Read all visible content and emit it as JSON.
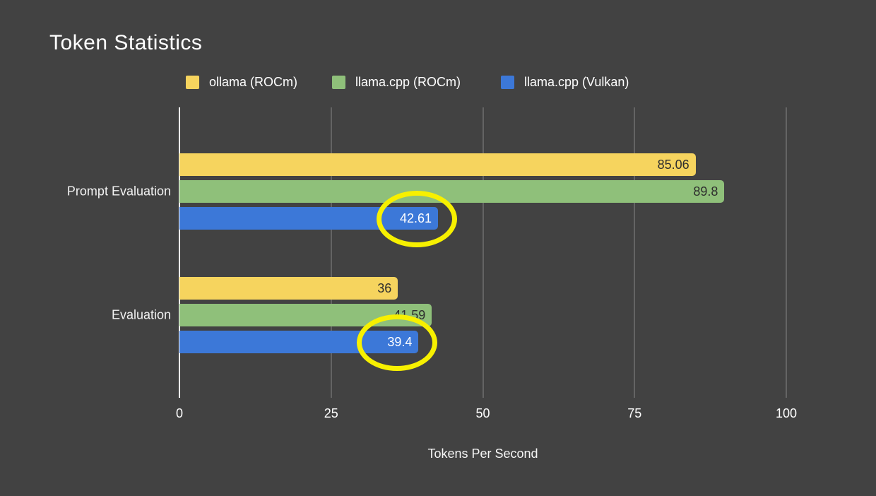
{
  "chart": {
    "title": "Token Statistics"
  },
  "chart_data": {
    "type": "bar",
    "orientation": "horizontal",
    "title": "Token Statistics",
    "xlabel": "Tokens Per Second",
    "xlim": [
      0,
      100
    ],
    "xticks": [
      "0",
      "25",
      "50",
      "75",
      "100"
    ],
    "grid": true,
    "legend_position": "top",
    "categories": [
      "Prompt Evaluation",
      "Evaluation"
    ],
    "series": [
      {
        "name": "ollama (ROCm)",
        "color": "#F6D45E",
        "values": [
          85.06,
          36
        ],
        "labels": [
          "85.06",
          "36"
        ],
        "label_color": "#2e2e2e"
      },
      {
        "name": "llama.cpp (ROCm)",
        "color": "#8FC07A",
        "values": [
          89.8,
          41.59
        ],
        "labels": [
          "89.8",
          "41.59"
        ],
        "label_color": "#2e2e2e"
      },
      {
        "name": "llama.cpp (Vulkan)",
        "color": "#3C78D8",
        "values": [
          42.61,
          39.4
        ],
        "labels": [
          "42.61",
          "39.4"
        ],
        "label_color": "#ffffff"
      }
    ],
    "annotations": [
      {
        "shape": "ellipse",
        "color": "#F7F000",
        "series": 2,
        "category": 0,
        "note": "hand-drawn highlight circle around 42.61"
      },
      {
        "shape": "ellipse",
        "color": "#F7F000",
        "series": 2,
        "category": 1,
        "note": "hand-drawn highlight circle around 39.4"
      }
    ],
    "colors": {
      "background": "#424242",
      "axis_line": "#FFFFFF",
      "gridline": "#646464",
      "text": "#FFFFFF"
    }
  }
}
